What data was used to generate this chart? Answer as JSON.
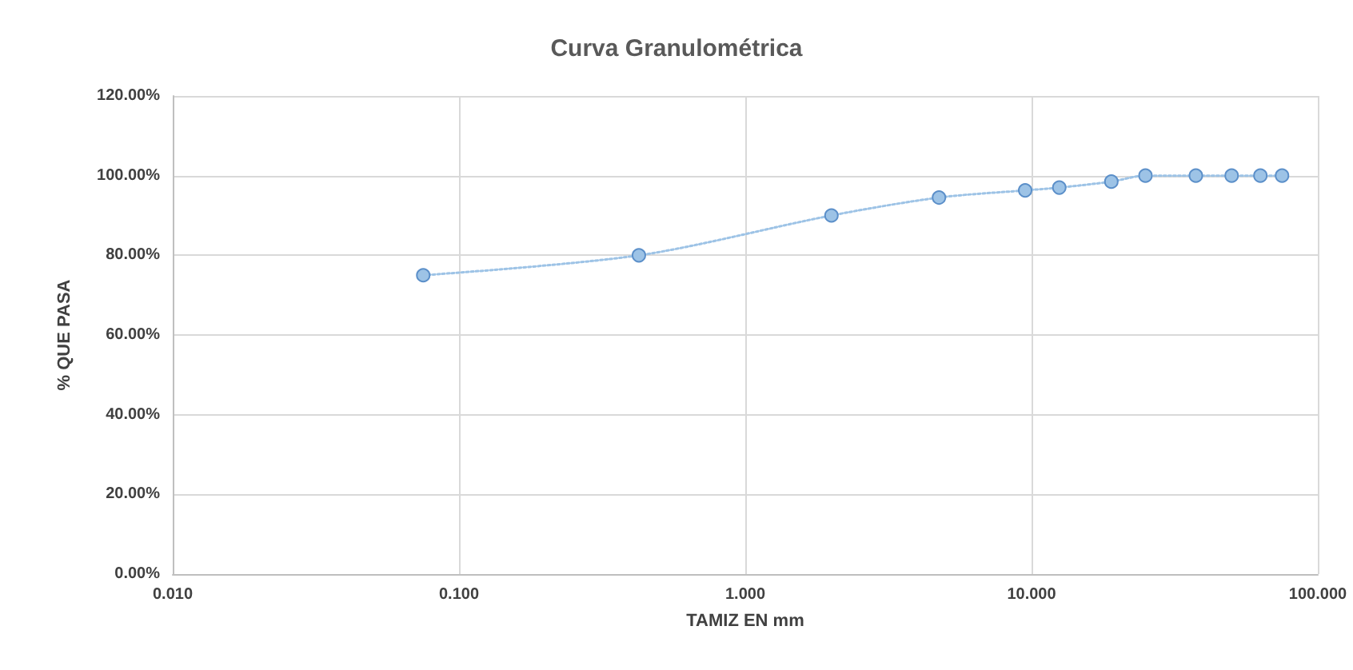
{
  "chart_data": {
    "type": "line",
    "title": "Curva Granulométrica",
    "xlabel": "TAMIZ EN mm",
    "ylabel": "% QUE PASA",
    "x": [
      0.075,
      0.425,
      2.0,
      4.75,
      9.5,
      12.5,
      19,
      25,
      37.5,
      50,
      63,
      75
    ],
    "series": [
      {
        "color": "#9dc3e6",
        "values": [
          75,
          80,
          90,
          94.5,
          96.3,
          97,
          98.5,
          100,
          100,
          100,
          100,
          100
        ]
      }
    ],
    "log": "x",
    "xlim": [
      0.01,
      100
    ],
    "xticks": [
      {
        "value": 0.01,
        "label": "0.010"
      },
      {
        "value": 0.1,
        "label": "0.100"
      },
      {
        "value": 1,
        "label": "1.000"
      },
      {
        "value": 10,
        "label": "10.000"
      },
      {
        "value": 100,
        "label": "100.000"
      }
    ],
    "ylim": [
      0,
      120
    ],
    "yticks": [
      {
        "value": 0,
        "label": "0.00%"
      },
      {
        "value": 20,
        "label": "20.00%"
      },
      {
        "value": 40,
        "label": "40.00%"
      },
      {
        "value": 60,
        "label": "60.00%"
      },
      {
        "value": 80,
        "label": "80.00%"
      },
      {
        "value": 100,
        "label": "100.00%"
      },
      {
        "value": 120,
        "label": "120.00%"
      }
    ],
    "grid": true,
    "marker": "circle",
    "line_style": "dotted"
  }
}
